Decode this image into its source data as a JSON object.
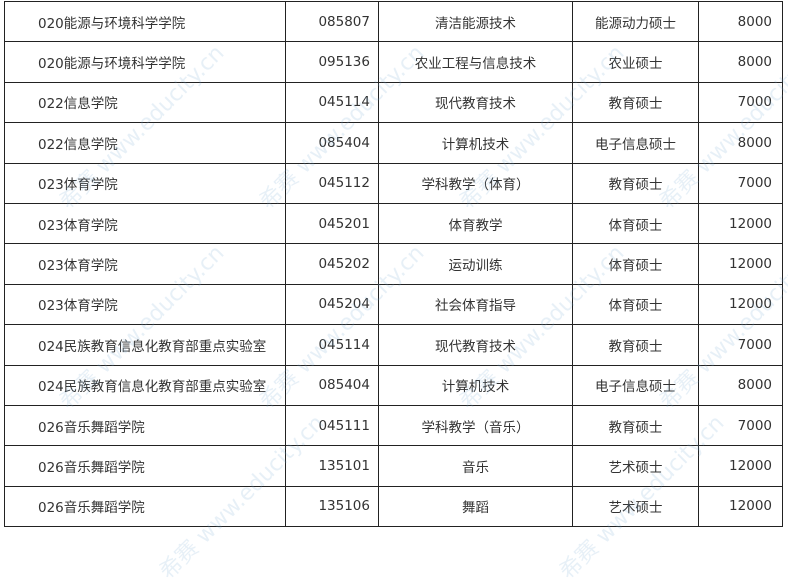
{
  "rows": [
    [
      "020能源与环境科学学院",
      "085807",
      "清洁能源技术",
      "能源动力硕士",
      "8000"
    ],
    [
      "020能源与环境科学学院",
      "095136",
      "农业工程与信息技术",
      "农业硕士",
      "8000"
    ],
    [
      "022信息学院",
      "045114",
      "现代教育技术",
      "教育硕士",
      "7000"
    ],
    [
      "022信息学院",
      "085404",
      "计算机技术",
      "电子信息硕士",
      "8000"
    ],
    [
      "023体育学院",
      "045112",
      "学科教学（体育）",
      "教育硕士",
      "7000"
    ],
    [
      "023体育学院",
      "045201",
      "体育教学",
      "体育硕士",
      "12000"
    ],
    [
      "023体育学院",
      "045202",
      "运动训练",
      "体育硕士",
      "12000"
    ],
    [
      "023体育学院",
      "045204",
      "社会体育指导",
      "体育硕士",
      "12000"
    ],
    [
      "024民族教育信息化教育部重点实验室",
      "045114",
      "现代教育技术",
      "教育硕士",
      "7000"
    ],
    [
      "024民族教育信息化教育部重点实验室",
      "085404",
      "计算机技术",
      "电子信息硕士",
      "8000"
    ],
    [
      "026音乐舞蹈学院",
      "045111",
      "学科教学（音乐）",
      "教育硕士",
      "7000"
    ],
    [
      "026音乐舞蹈学院",
      "135101",
      "音乐",
      "艺术硕士",
      "12000"
    ],
    [
      "026音乐舞蹈学院",
      "135106",
      "舞蹈",
      "艺术硕士",
      "12000"
    ]
  ],
  "watermark": "希赛 www.educity.cn"
}
